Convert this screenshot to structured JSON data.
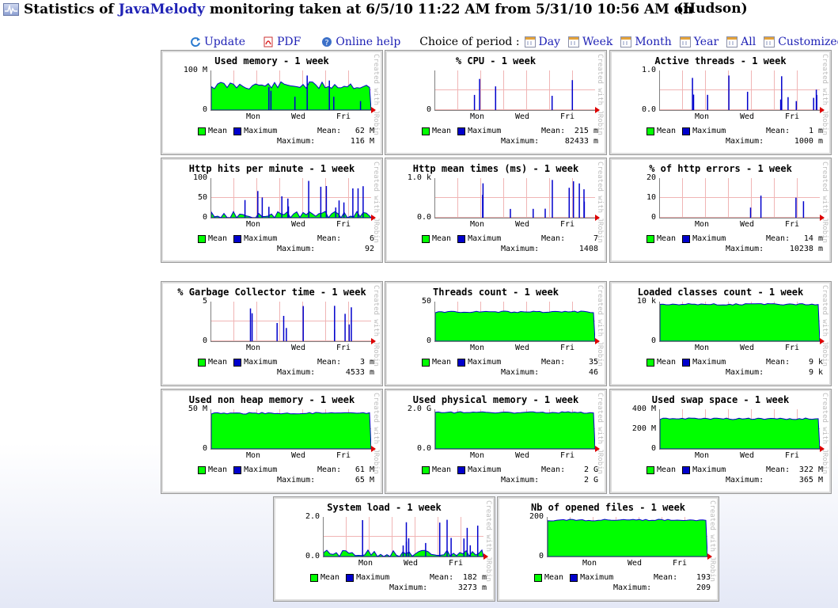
{
  "header": {
    "title_prefix": "Statistics of ",
    "brand": "JavaMelody",
    "title_suffix": " monitoring taken at 6/5/10 11:22 AM from 5/31/10 10:56 AM on",
    "host": "(Hudson)"
  },
  "toolbar": {
    "update": "Update",
    "pdf": "PDF",
    "help": "Online help",
    "period_label": "Choice of period :",
    "day": "Day",
    "week": "Week",
    "month": "Month",
    "year": "Year",
    "all": "All",
    "custom": "Customized"
  },
  "colors": {
    "mean": "#00ff00",
    "max": "#0000cc",
    "grid": "#f0b5b5",
    "link": "#1f22b5"
  },
  "common": {
    "created": "Created with JRobin",
    "mean_label": "Mean",
    "max_label": "Maximum",
    "mean_stat": "Mean:",
    "max_stat": "Maximum:",
    "x_ticks": [
      "Mon",
      "Wed",
      "Fri"
    ]
  },
  "panels": [
    {
      "title": "Used memory - 1 week",
      "y_ticks": [
        "100 M",
        "0"
      ],
      "mean": "62 M",
      "max": "116 M"
    },
    {
      "title": "% CPU - 1 week",
      "y_ticks": [
        "",
        "0"
      ],
      "mean": "215 m",
      "max": "82433 m"
    },
    {
      "title": "Active threads - 1 week",
      "y_ticks": [
        "1.0",
        "0.0"
      ],
      "mean": "1 m",
      "max": "1000 m"
    },
    {
      "title": "Http hits per minute - 1 week",
      "y_ticks": [
        "100",
        "50",
        "0"
      ],
      "mean": "6",
      "max": "92"
    },
    {
      "title": "Http mean times (ms) - 1 week",
      "y_ticks": [
        "1.0 k",
        "0.0"
      ],
      "mean": "7",
      "max": "1408"
    },
    {
      "title": "% of http errors - 1 week",
      "y_ticks": [
        "20",
        "10",
        "0"
      ],
      "mean": "14 m",
      "max": "10238 m"
    },
    {
      "title": "% Garbage Collector time - 1 week",
      "y_ticks": [
        "5",
        "0"
      ],
      "mean": "3 m",
      "max": "4533 m"
    },
    {
      "title": "Threads count - 1 week",
      "y_ticks": [
        "50",
        "0"
      ],
      "mean": "35",
      "max": "46"
    },
    {
      "title": "Loaded classes count - 1 week",
      "y_ticks": [
        "10 k",
        "0"
      ],
      "mean": "9 k",
      "max": "9 k"
    },
    {
      "title": "Used non heap memory - 1 week",
      "y_ticks": [
        "50 M",
        "0"
      ],
      "mean": "61 M",
      "max": "65 M"
    },
    {
      "title": "Used physical memory - 1 week",
      "y_ticks": [
        "2.0 G",
        "0.0"
      ],
      "mean": "2 G",
      "max": "2 G"
    },
    {
      "title": "Used swap space - 1 week",
      "y_ticks": [
        "400 M",
        "200 M",
        "0"
      ],
      "mean": "322 M",
      "max": "365 M"
    },
    {
      "title": "System load - 1 week",
      "y_ticks": [
        "2.0",
        "0.0"
      ],
      "mean": "182 m",
      "max": "3273 m"
    },
    {
      "title": "Nb of opened files - 1 week",
      "y_ticks": [
        "200",
        "0"
      ],
      "mean": "193",
      "max": "209"
    }
  ]
}
